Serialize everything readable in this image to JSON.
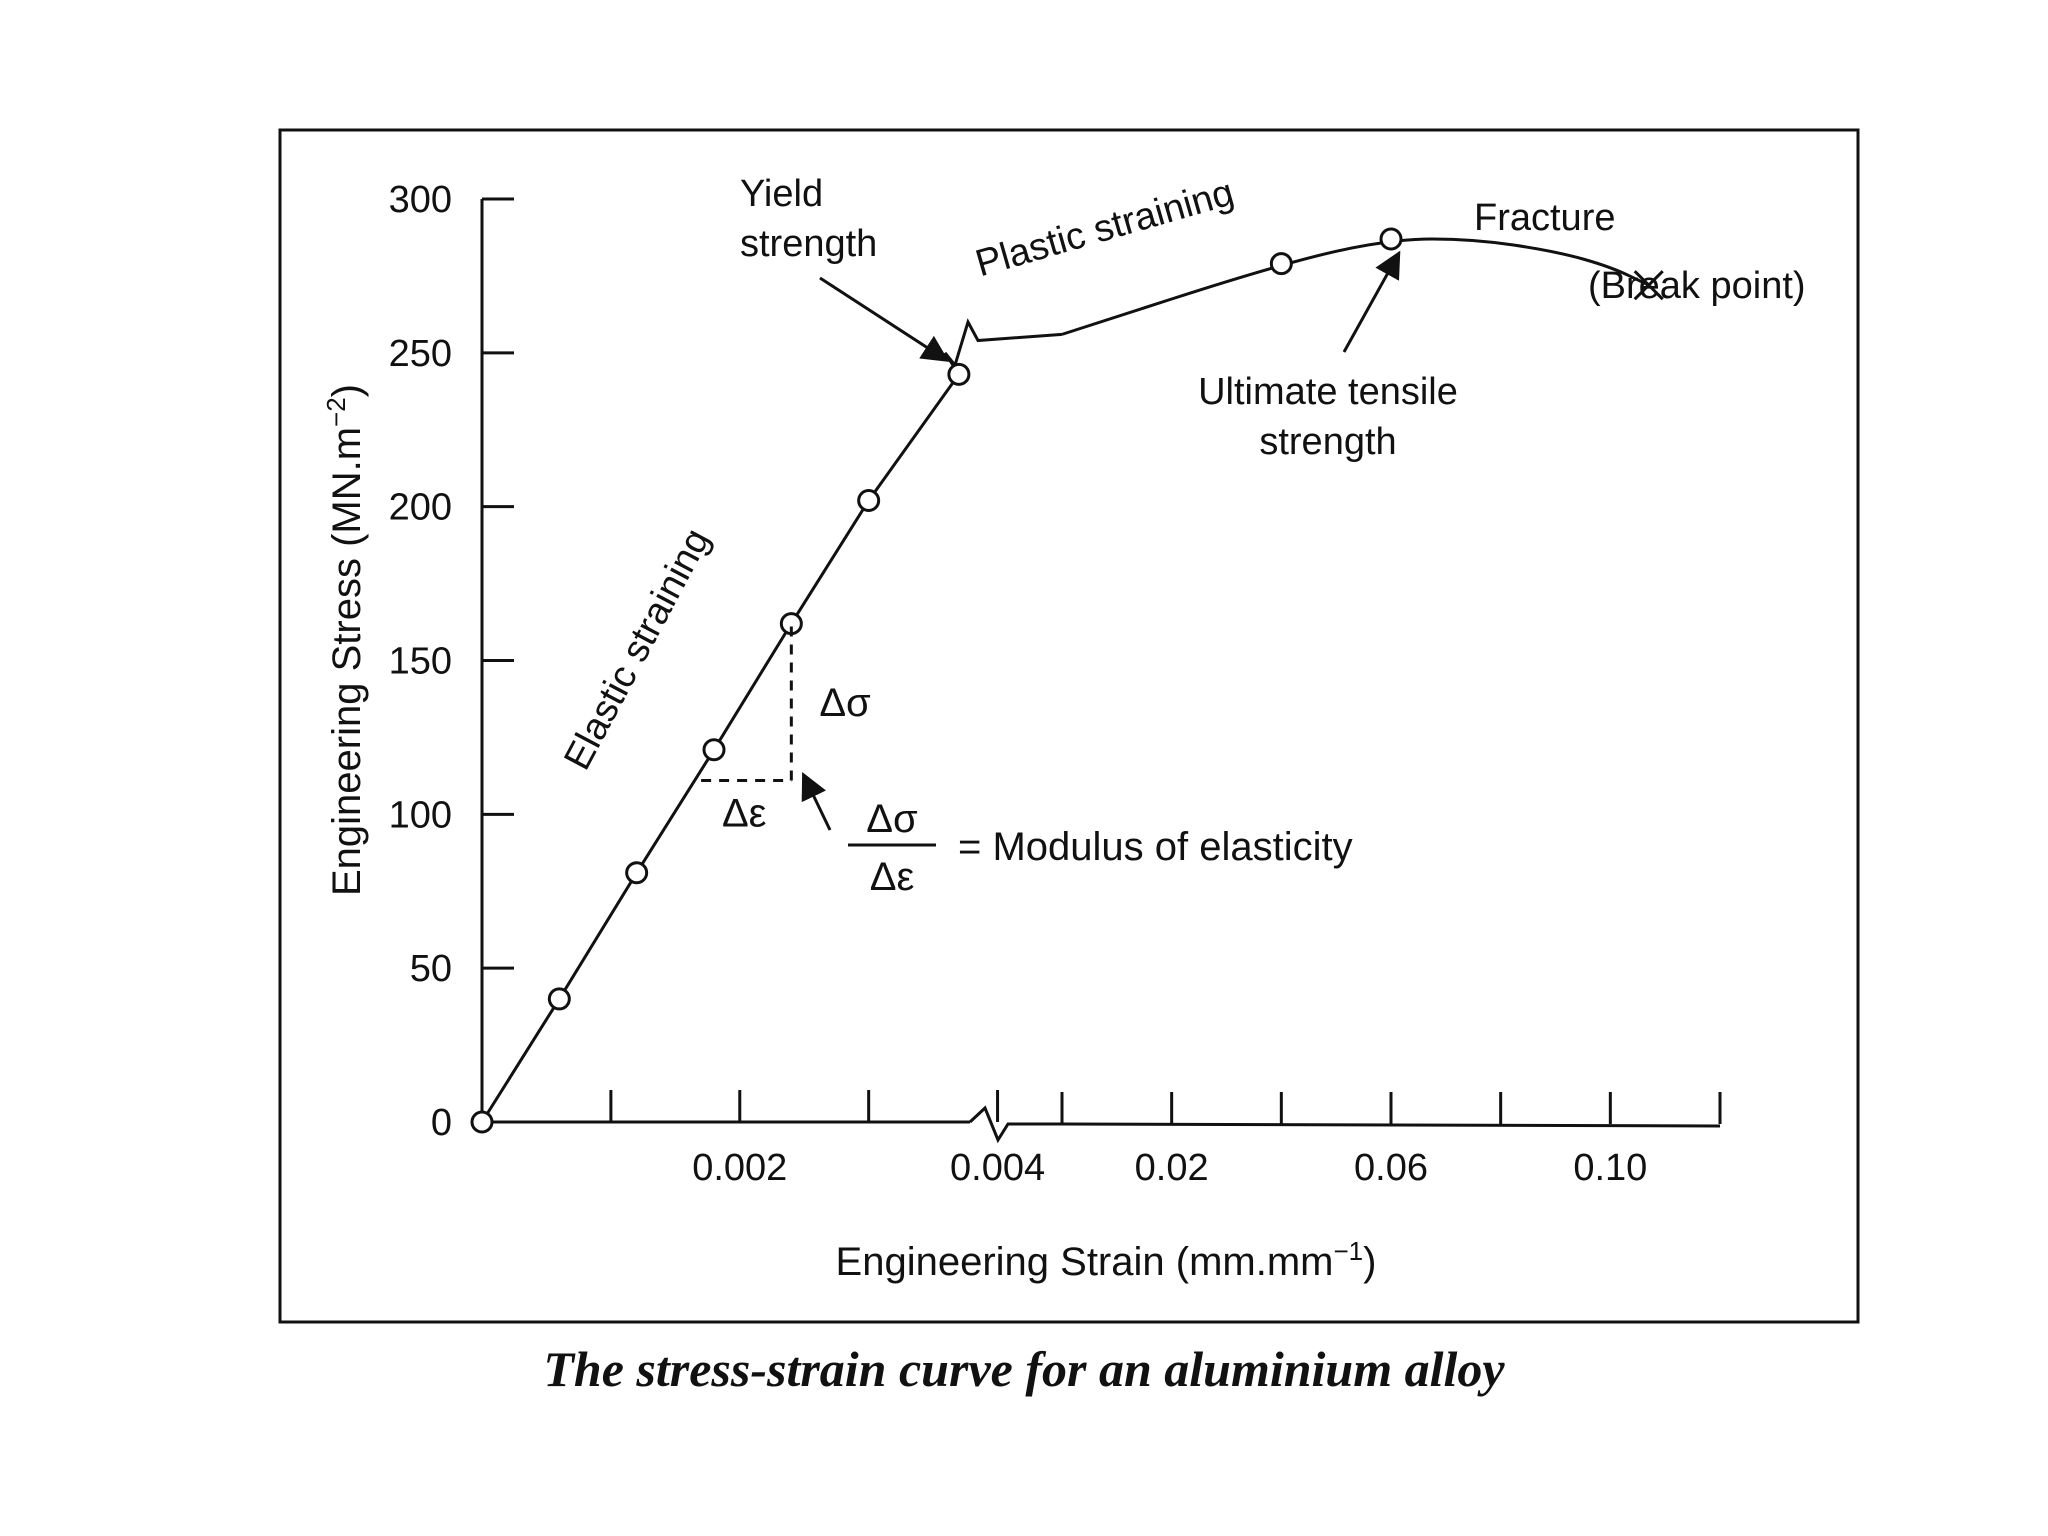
{
  "chart_data": {
    "type": "line",
    "title": "",
    "xlabel": "Engineering Strain (mm.mm",
    "xlabel_sup": "−1",
    "xlabel_end": ")",
    "ylabel": "Engineering Stress (MN.m",
    "ylabel_sup": "−2",
    "ylabel_end": ")",
    "ylim": [
      0,
      300
    ],
    "y_ticks": [
      0,
      50,
      100,
      150,
      200,
      250,
      300
    ],
    "y_tick_labels": [
      "0",
      "50",
      "100",
      "150",
      "200",
      "250",
      "300"
    ],
    "x_axis_break": true,
    "x_segments": [
      {
        "range": [
          0,
          0.0045
        ],
        "ticks": [
          0.001,
          0.002,
          0.003,
          0.004
        ]
      },
      {
        "range": [
          0.0,
          0.12
        ],
        "ticks": [
          0.0,
          0.02,
          0.04,
          0.06,
          0.08,
          0.1,
          0.12
        ]
      }
    ],
    "x_tick_labels": [
      {
        "value": 0.002,
        "segment": 0,
        "label": "0.002"
      },
      {
        "value": 0.004,
        "segment": 0,
        "label": "0.004"
      },
      {
        "value": 0.02,
        "segment": 1,
        "label": "0.02"
      },
      {
        "value": 0.06,
        "segment": 1,
        "label": "0.06"
      },
      {
        "value": 0.1,
        "segment": 1,
        "label": "0.10"
      }
    ],
    "series": [
      {
        "name": "aluminium alloy",
        "elastic_points": [
          {
            "x": 0.0,
            "y": 0
          },
          {
            "x": 0.0006,
            "y": 40
          },
          {
            "x": 0.0012,
            "y": 81
          },
          {
            "x": 0.0018,
            "y": 121
          },
          {
            "x": 0.0024,
            "y": 162
          },
          {
            "x": 0.003,
            "y": 202
          },
          {
            "x": 0.0037,
            "y": 243
          }
        ],
        "plastic_points": [
          {
            "x": 0.04,
            "y": 279
          },
          {
            "x": 0.06,
            "y": 287
          }
        ],
        "plastic_curve": [
          {
            "x": 0.0,
            "y": 256
          },
          {
            "x": 0.04,
            "y": 279
          },
          {
            "x": 0.06,
            "y": 287
          },
          {
            "x": 0.075,
            "y": 287
          },
          {
            "x": 0.09,
            "y": 283
          },
          {
            "x": 0.1,
            "y": 278
          },
          {
            "x": 0.107,
            "y": 272
          }
        ],
        "break_point": {
          "x": 0.107,
          "y": 272
        }
      }
    ],
    "modulus_triangle": {
      "x1": 0.0017,
      "x2": 0.0024,
      "y1": 111,
      "y2": 162
    },
    "annotations": {
      "yield_line1": "Yield",
      "yield_line2": "strength",
      "plastic_straining": "Plastic straining",
      "elastic_straining": "Elastic straining",
      "fracture": "Fracture",
      "break_point": "(Break point)",
      "uts_line1": "Ultimate tensile",
      "uts_line2": "strength",
      "delta_sigma": "Δσ",
      "delta_epsilon": "Δε",
      "modulus_num": "Δσ",
      "modulus_den": "Δε",
      "modulus_text": "= Modulus of elasticity"
    }
  },
  "caption": "The stress-strain curve for an aluminium alloy",
  "colors": {
    "ink": "#111111",
    "background": "#ffffff"
  }
}
